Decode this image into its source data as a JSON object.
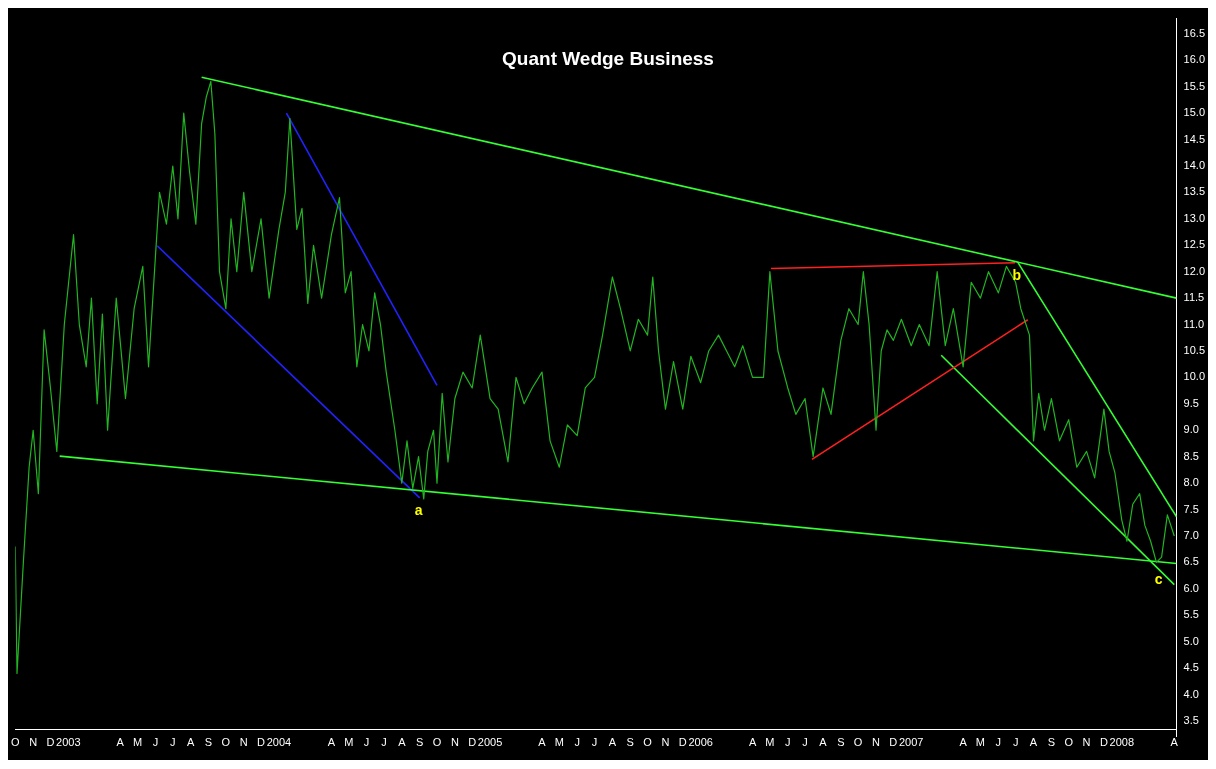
{
  "chart_data": {
    "type": "line",
    "title": "Quant Wedge Business",
    "xlim": [
      "2002-10-01",
      "2008-04-05"
    ],
    "ylim": [
      3.2,
      16.8
    ],
    "yticks": [
      3.5,
      {
        "value": 4,
        "label": "4.0"
      },
      4.5,
      {
        "value": 5,
        "label": "5.0"
      },
      5.5,
      {
        "value": 6,
        "label": "6.0"
      },
      6.5,
      {
        "value": 7,
        "label": "7.0"
      },
      7.5,
      {
        "value": 8,
        "label": "8.0"
      },
      8.5,
      {
        "value": 9,
        "label": "9.0"
      },
      9.5,
      {
        "value": 10,
        "label": "10.0"
      },
      10.5,
      {
        "value": 11,
        "label": "11.0"
      },
      11.5,
      {
        "value": 12,
        "label": "12.0"
      },
      12.5,
      {
        "value": 13,
        "label": "13.0"
      },
      13.5,
      {
        "value": 14,
        "label": "14.0"
      },
      14.5,
      {
        "value": 15,
        "label": "15.0"
      },
      15.5,
      {
        "value": 16,
        "label": "16.0"
      },
      16.5
    ],
    "xticks": [
      {
        "value": "2002-10-01",
        "label": "O"
      },
      {
        "value": "2002-11-01",
        "label": "N"
      },
      {
        "value": "2002-12-01",
        "label": "D"
      },
      {
        "value": "2003-01-01",
        "label": "2003"
      },
      {
        "value": "2003-04-01",
        "label": "A"
      },
      {
        "value": "2003-05-01",
        "label": "M"
      },
      {
        "value": "2003-06-01",
        "label": "J"
      },
      {
        "value": "2003-07-01",
        "label": "J"
      },
      {
        "value": "2003-08-01",
        "label": "A"
      },
      {
        "value": "2003-09-01",
        "label": "S"
      },
      {
        "value": "2003-10-01",
        "label": "O"
      },
      {
        "value": "2003-11-01",
        "label": "N"
      },
      {
        "value": "2003-12-01",
        "label": "D"
      },
      {
        "value": "2004-01-01",
        "label": "2004"
      },
      {
        "value": "2004-04-01",
        "label": "A"
      },
      {
        "value": "2004-05-01",
        "label": "M"
      },
      {
        "value": "2004-06-01",
        "label": "J"
      },
      {
        "value": "2004-07-01",
        "label": "J"
      },
      {
        "value": "2004-08-01",
        "label": "A"
      },
      {
        "value": "2004-09-01",
        "label": "S"
      },
      {
        "value": "2004-10-01",
        "label": "O"
      },
      {
        "value": "2004-11-01",
        "label": "N"
      },
      {
        "value": "2004-12-01",
        "label": "D"
      },
      {
        "value": "2005-01-01",
        "label": "2005"
      },
      {
        "value": "2005-04-01",
        "label": "A"
      },
      {
        "value": "2005-05-01",
        "label": "M"
      },
      {
        "value": "2005-06-01",
        "label": "J"
      },
      {
        "value": "2005-07-01",
        "label": "J"
      },
      {
        "value": "2005-08-01",
        "label": "A"
      },
      {
        "value": "2005-09-01",
        "label": "S"
      },
      {
        "value": "2005-10-01",
        "label": "O"
      },
      {
        "value": "2005-11-01",
        "label": "N"
      },
      {
        "value": "2005-12-01",
        "label": "D"
      },
      {
        "value": "2006-01-01",
        "label": "2006"
      },
      {
        "value": "2006-04-01",
        "label": "A"
      },
      {
        "value": "2006-05-01",
        "label": "M"
      },
      {
        "value": "2006-06-01",
        "label": "J"
      },
      {
        "value": "2006-07-01",
        "label": "J"
      },
      {
        "value": "2006-08-01",
        "label": "A"
      },
      {
        "value": "2006-09-01",
        "label": "S"
      },
      {
        "value": "2006-10-01",
        "label": "O"
      },
      {
        "value": "2006-11-01",
        "label": "N"
      },
      {
        "value": "2006-12-01",
        "label": "D"
      },
      {
        "value": "2007-01-01",
        "label": "2007"
      },
      {
        "value": "2007-04-01",
        "label": "A"
      },
      {
        "value": "2007-05-01",
        "label": "M"
      },
      {
        "value": "2007-06-01",
        "label": "J"
      },
      {
        "value": "2007-07-01",
        "label": "J"
      },
      {
        "value": "2007-08-01",
        "label": "A"
      },
      {
        "value": "2007-09-01",
        "label": "S"
      },
      {
        "value": "2007-10-01",
        "label": "O"
      },
      {
        "value": "2007-11-01",
        "label": "N"
      },
      {
        "value": "2007-12-01",
        "label": "D"
      },
      {
        "value": "2008-01-01",
        "label": "2008"
      },
      {
        "value": "2008-04-01",
        "label": "A"
      }
    ],
    "annotations": [
      {
        "text": "a",
        "x": "2004-08-30",
        "y": 7.75
      },
      {
        "text": "b",
        "x": "2007-07-03",
        "y": 12.2
      },
      {
        "text": "c",
        "x": "2008-03-05",
        "y": 6.45
      }
    ],
    "series": [
      {
        "color": "#22b422",
        "x": [
          "2002-10-01",
          "2002-10-04",
          "2002-10-15",
          "2002-10-25",
          "2002-11-01",
          "2002-11-10",
          "2002-11-20",
          "2002-12-01",
          "2002-12-12",
          "2002-12-25",
          "2003-01-10",
          "2003-01-20",
          "2003-02-01",
          "2003-02-10",
          "2003-02-20",
          "2003-03-01",
          "2003-03-10",
          "2003-03-25",
          "2003-04-10",
          "2003-04-25",
          "2003-05-10",
          "2003-05-20",
          "2003-06-01",
          "2003-06-08",
          "2003-06-20",
          "2003-07-01",
          "2003-07-10",
          "2003-07-20",
          "2003-07-30",
          "2003-08-10",
          "2003-08-20",
          "2003-08-28",
          "2003-09-05",
          "2003-09-12",
          "2003-09-20",
          "2003-10-01",
          "2003-10-10",
          "2003-10-20",
          "2003-11-01",
          "2003-11-15",
          "2003-12-01",
          "2003-12-15",
          "2004-01-01",
          "2004-01-12",
          "2004-01-20",
          "2004-02-01",
          "2004-02-10",
          "2004-02-20",
          "2004-03-01",
          "2004-03-15",
          "2004-04-01",
          "2004-04-15",
          "2004-04-25",
          "2004-05-05",
          "2004-05-15",
          "2004-05-25",
          "2004-06-05",
          "2004-06-15",
          "2004-06-25",
          "2004-07-05",
          "2004-07-20",
          "2004-08-01",
          "2004-08-10",
          "2004-08-20",
          "2004-08-30",
          "2004-09-08",
          "2004-09-15",
          "2004-09-25",
          "2004-10-01",
          "2004-10-10",
          "2004-10-20",
          "2004-11-01",
          "2004-11-15",
          "2004-12-01",
          "2004-12-15",
          "2005-01-01",
          "2005-01-15",
          "2005-02-01",
          "2005-02-15",
          "2005-03-01",
          "2005-03-15",
          "2005-04-01",
          "2005-04-15",
          "2005-05-01",
          "2005-05-15",
          "2005-06-01",
          "2005-06-15",
          "2005-07-01",
          "2005-07-15",
          "2005-08-01",
          "2005-08-15",
          "2005-09-01",
          "2005-09-15",
          "2005-10-01",
          "2005-10-10",
          "2005-10-20",
          "2005-11-01",
          "2005-11-15",
          "2005-12-01",
          "2005-12-15",
          "2006-01-01",
          "2006-01-15",
          "2006-02-01",
          "2006-02-15",
          "2006-03-01",
          "2006-03-15",
          "2006-04-01",
          "2006-04-20",
          "2006-05-01",
          "2006-05-15",
          "2006-06-01",
          "2006-06-15",
          "2006-07-01",
          "2006-07-15",
          "2006-08-01",
          "2006-08-15",
          "2006-09-01",
          "2006-09-15",
          "2006-10-01",
          "2006-10-10",
          "2006-10-20",
          "2006-11-01",
          "2006-11-10",
          "2006-11-20",
          "2006-12-01",
          "2006-12-15",
          "2007-01-01",
          "2007-01-15",
          "2007-02-01",
          "2007-02-15",
          "2007-03-01",
          "2007-03-15",
          "2007-04-01",
          "2007-04-15",
          "2007-05-01",
          "2007-05-15",
          "2007-06-01",
          "2007-06-15",
          "2007-07-01",
          "2007-07-10",
          "2007-07-25",
          "2007-08-01",
          "2007-08-10",
          "2007-08-20",
          "2007-09-01",
          "2007-09-15",
          "2007-10-01",
          "2007-10-15",
          "2007-11-01",
          "2007-11-15",
          "2007-12-01",
          "2007-12-10",
          "2007-12-20",
          "2008-01-01",
          "2008-01-10",
          "2008-01-20",
          "2008-02-01",
          "2008-02-10",
          "2008-02-20",
          "2008-03-01",
          "2008-03-10",
          "2008-03-20",
          "2008-04-01"
        ],
        "values": [
          6.8,
          4.4,
          6.5,
          8.3,
          9.0,
          7.8,
          10.9,
          9.8,
          8.6,
          11.0,
          12.7,
          11.0,
          10.2,
          11.5,
          9.5,
          11.2,
          9.0,
          11.5,
          9.6,
          11.3,
          12.1,
          10.2,
          12.3,
          13.5,
          12.9,
          14.0,
          13.0,
          15.0,
          13.9,
          12.9,
          14.8,
          15.3,
          15.6,
          14.6,
          12.0,
          11.3,
          13.0,
          12.0,
          13.5,
          12.0,
          13.0,
          11.5,
          12.8,
          13.5,
          14.9,
          12.8,
          13.2,
          11.4,
          12.5,
          11.5,
          12.7,
          13.4,
          11.6,
          12.0,
          10.2,
          11.0,
          10.5,
          11.6,
          11.0,
          10.1,
          9.0,
          8.0,
          8.8,
          7.9,
          8.5,
          7.7,
          8.6,
          9.0,
          8.0,
          9.7,
          8.4,
          9.6,
          10.1,
          9.8,
          10.8,
          9.6,
          9.4,
          8.4,
          10.0,
          9.5,
          9.8,
          10.1,
          8.8,
          8.3,
          9.1,
          8.9,
          9.8,
          10.0,
          10.8,
          11.9,
          11.3,
          10.5,
          11.1,
          10.8,
          11.9,
          10.5,
          9.4,
          10.3,
          9.4,
          10.4,
          9.9,
          10.5,
          10.8,
          10.5,
          10.2,
          10.6,
          10.0,
          10.0,
          12.0,
          10.5,
          9.8,
          9.3,
          9.6,
          8.5,
          9.8,
          9.3,
          10.7,
          11.3,
          11.0,
          12.0,
          11.0,
          9.0,
          10.5,
          10.9,
          10.7,
          11.1,
          10.6,
          11.0,
          10.6,
          12.0,
          10.6,
          11.3,
          10.2,
          11.8,
          11.5,
          12.0,
          11.6,
          12.1,
          11.8,
          11.3,
          10.8,
          8.8,
          9.7,
          9.0,
          9.6,
          8.8,
          9.2,
          8.3,
          8.6,
          8.1,
          9.4,
          8.6,
          8.2,
          7.3,
          6.9,
          7.6,
          7.8,
          7.2,
          6.9,
          6.5,
          6.6,
          7.4,
          7.0
        ]
      },
      {
        "type": "line",
        "color": "#33ff33",
        "x": [
          "2003-08-20",
          "2008-04-05"
        ],
        "values": [
          15.68,
          11.5
        ]
      },
      {
        "type": "line",
        "color": "#33ff33",
        "x": [
          "2002-12-17",
          "2008-04-05"
        ],
        "values": [
          8.51,
          6.48
        ]
      },
      {
        "type": "line",
        "color": "#2222ff",
        "x": [
          "2003-06-04",
          "2004-09-01"
        ],
        "values": [
          12.49,
          7.72
        ]
      },
      {
        "type": "line",
        "color": "#2222ff",
        "x": [
          "2004-01-14",
          "2004-10-01"
        ],
        "values": [
          15.0,
          9.85
        ]
      },
      {
        "type": "line",
        "color": "#ff2020",
        "x": [
          "2006-05-03",
          "2007-06-30"
        ],
        "values": [
          12.06,
          12.17
        ]
      },
      {
        "type": "line",
        "color": "#ff2020",
        "x": [
          "2006-07-13",
          "2007-07-22"
        ],
        "values": [
          8.45,
          11.09
        ]
      },
      {
        "type": "line",
        "color": "#33ff33",
        "x": [
          "2007-02-22",
          "2008-04-01"
        ],
        "values": [
          10.42,
          6.08
        ]
      },
      {
        "type": "line",
        "color": "#33ff33",
        "x": [
          "2007-07-04",
          "2008-04-05"
        ],
        "values": [
          12.19,
          7.36
        ]
      }
    ]
  }
}
